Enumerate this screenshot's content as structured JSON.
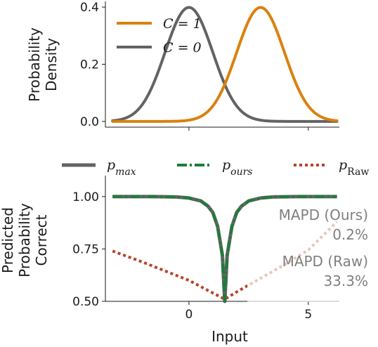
{
  "chart_data": [
    {
      "type": "line",
      "ylabel": [
        "Probability",
        "Density"
      ],
      "xlim": [
        -3.5,
        6.3
      ],
      "ylim": [
        -0.02,
        0.42
      ],
      "x_ticks": [
        0,
        5
      ],
      "y_ticks": [
        0.0,
        0.2,
        0.4
      ],
      "y_tick_labels": [
        "0.0",
        "0.2",
        "0.4"
      ],
      "series": [
        {
          "name": "C = 1",
          "color": "#d9820f",
          "distribution": "normal",
          "mean": 3,
          "std": 1
        },
        {
          "name": "C = 0",
          "color": "#636363",
          "distribution": "normal",
          "mean": 0,
          "std": 1
        }
      ],
      "legend": {
        "placement": "top-left",
        "labels": [
          "C = 1",
          "C = 0"
        ]
      }
    },
    {
      "type": "line",
      "xlabel": "Input",
      "ylabel": [
        "Predicted",
        "Probability",
        "Correct"
      ],
      "xlim": [
        -3.5,
        6.3
      ],
      "ylim": [
        0.5,
        1.1
      ],
      "x_ticks": [
        0,
        5
      ],
      "x_tick_labels": [
        "0",
        "5"
      ],
      "y_ticks": [
        0.5,
        0.75,
        1.0
      ],
      "y_tick_labels": [
        "0.50",
        "0.75",
        "1.00"
      ],
      "legend": {
        "placement": "top",
        "labels": [
          "p_max",
          "p_ours",
          "p_Raw"
        ]
      },
      "series": [
        {
          "name": "p_max",
          "color": "#636363",
          "style": "solid",
          "x": [
            -3.2,
            -1.5,
            -0.5,
            0.0,
            0.5,
            0.8,
            1.0,
            1.2,
            1.4,
            1.5,
            1.6,
            1.8,
            2.0,
            2.2,
            2.5,
            3.0,
            3.5,
            4.5,
            6.2
          ],
          "y": [
            1.0,
            1.0,
            0.998,
            0.993,
            0.979,
            0.954,
            0.924,
            0.858,
            0.72,
            0.5,
            0.72,
            0.858,
            0.924,
            0.954,
            0.979,
            0.993,
            0.998,
            1.0,
            1.0
          ]
        },
        {
          "name": "p_ours",
          "color": "#1e7c3a",
          "style": "dashdot",
          "x": [
            -3.2,
            -1.5,
            -0.5,
            0.0,
            0.5,
            0.8,
            1.0,
            1.2,
            1.4,
            1.5,
            1.6,
            1.8,
            2.0,
            2.2,
            2.5,
            3.0,
            3.5,
            4.5,
            6.2
          ],
          "y": [
            1.0,
            1.0,
            0.998,
            0.993,
            0.979,
            0.954,
            0.924,
            0.858,
            0.72,
            0.5,
            0.72,
            0.858,
            0.924,
            0.954,
            0.979,
            0.993,
            0.998,
            1.0,
            1.0
          ]
        },
        {
          "name": "p_Raw",
          "color": "#b5432a",
          "style": "dotted",
          "x": [
            -3.2,
            -2.0,
            -1.0,
            0.0,
            1.0,
            1.5,
            2.0,
            3.0,
            4.0,
            5.0,
            6.2
          ],
          "y": [
            0.74,
            0.69,
            0.645,
            0.6,
            0.54,
            0.51,
            0.545,
            0.61,
            0.675,
            0.745,
            0.88
          ]
        }
      ],
      "annotations": [
        {
          "text_lines": [
            "MAPD (Ours)",
            "0.2%"
          ]
        },
        {
          "text_lines": [
            "MAPD (Raw)",
            "33.3%"
          ]
        }
      ]
    }
  ]
}
